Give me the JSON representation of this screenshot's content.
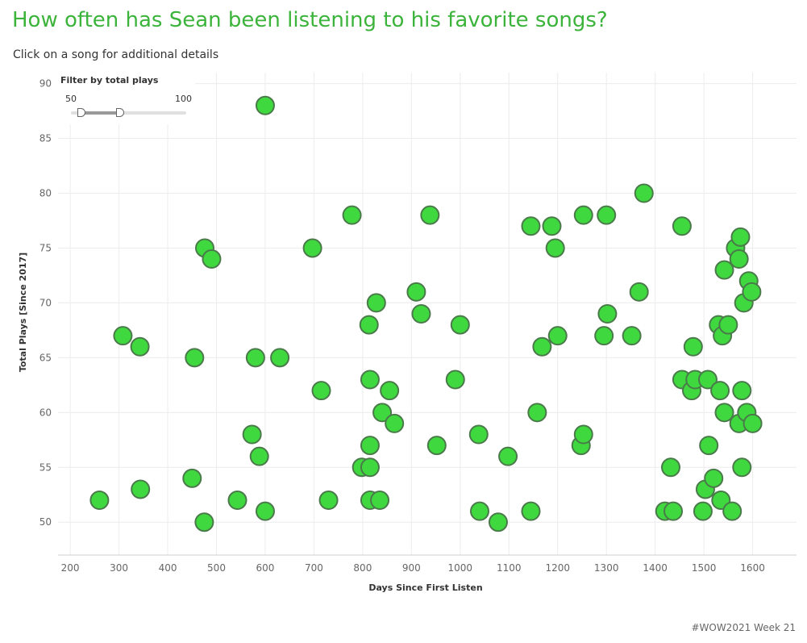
{
  "header": {
    "title": "How often has Sean been listening to his favorite songs?",
    "subtitle": "Click on a song for additional details"
  },
  "filter": {
    "title": "Filter by total plays",
    "min_label": "50",
    "max_label": "100",
    "range_low": 54,
    "range_high": 71
  },
  "footer": "#WOW2021 Week 21",
  "colors": {
    "point_fill": "#3fd93f",
    "point_stroke": "#4a7a4a",
    "title": "#3cb43c"
  },
  "chart_data": {
    "type": "scatter",
    "title": "",
    "xlabel": "Days Since First Listen",
    "ylabel": "Total Plays [Since 2017]",
    "xlim": [
      175,
      1690
    ],
    "ylim": [
      47,
      91
    ],
    "xticks": [
      200,
      300,
      400,
      500,
      600,
      700,
      800,
      900,
      1000,
      1100,
      1200,
      1300,
      1400,
      1500,
      1600
    ],
    "yticks": [
      50,
      55,
      60,
      65,
      70,
      75,
      80,
      85,
      90
    ],
    "grid": true,
    "points": [
      [
        600,
        88
      ],
      [
        260,
        52
      ],
      [
        308,
        67
      ],
      [
        343,
        66
      ],
      [
        344,
        53
      ],
      [
        450,
        54
      ],
      [
        455,
        65
      ],
      [
        475,
        50
      ],
      [
        476,
        75
      ],
      [
        490,
        74
      ],
      [
        543,
        52
      ],
      [
        573,
        58
      ],
      [
        580,
        65
      ],
      [
        588,
        56
      ],
      [
        600,
        51
      ],
      [
        630,
        65
      ],
      [
        697,
        75
      ],
      [
        715,
        62
      ],
      [
        730,
        52
      ],
      [
        778,
        78
      ],
      [
        798,
        55
      ],
      [
        813,
        68
      ],
      [
        815,
        63
      ],
      [
        815,
        57
      ],
      [
        815,
        55
      ],
      [
        815,
        52
      ],
      [
        828,
        70
      ],
      [
        835,
        52
      ],
      [
        840,
        60
      ],
      [
        855,
        62
      ],
      [
        865,
        59
      ],
      [
        910,
        71
      ],
      [
        920,
        69
      ],
      [
        938,
        78
      ],
      [
        952,
        57
      ],
      [
        990,
        63
      ],
      [
        1000,
        68
      ],
      [
        1038,
        58
      ],
      [
        1040,
        51
      ],
      [
        1078,
        50
      ],
      [
        1098,
        56
      ],
      [
        1145,
        77
      ],
      [
        1145,
        51
      ],
      [
        1158,
        60
      ],
      [
        1168,
        66
      ],
      [
        1188,
        77
      ],
      [
        1195,
        75
      ],
      [
        1200,
        67
      ],
      [
        1248,
        57
      ],
      [
        1253,
        78
      ],
      [
        1253,
        58
      ],
      [
        1295,
        67
      ],
      [
        1300,
        78
      ],
      [
        1302,
        69
      ],
      [
        1352,
        67
      ],
      [
        1367,
        71
      ],
      [
        1377,
        80
      ],
      [
        1420,
        51
      ],
      [
        1432,
        55
      ],
      [
        1437,
        51
      ],
      [
        1455,
        77
      ],
      [
        1455,
        63
      ],
      [
        1475,
        62
      ],
      [
        1478,
        66
      ],
      [
        1482,
        63
      ],
      [
        1498,
        51
      ],
      [
        1503,
        53
      ],
      [
        1508,
        63
      ],
      [
        1510,
        57
      ],
      [
        1520,
        54
      ],
      [
        1530,
        68
      ],
      [
        1533,
        62
      ],
      [
        1535,
        52
      ],
      [
        1538,
        67
      ],
      [
        1542,
        60
      ],
      [
        1542,
        73
      ],
      [
        1550,
        68
      ],
      [
        1558,
        51
      ],
      [
        1565,
        75
      ],
      [
        1572,
        59
      ],
      [
        1572,
        74
      ],
      [
        1575,
        76
      ],
      [
        1578,
        62
      ],
      [
        1578,
        55
      ],
      [
        1582,
        70
      ],
      [
        1588,
        60
      ],
      [
        1592,
        72
      ],
      [
        1598,
        71
      ],
      [
        1600,
        59
      ]
    ]
  }
}
